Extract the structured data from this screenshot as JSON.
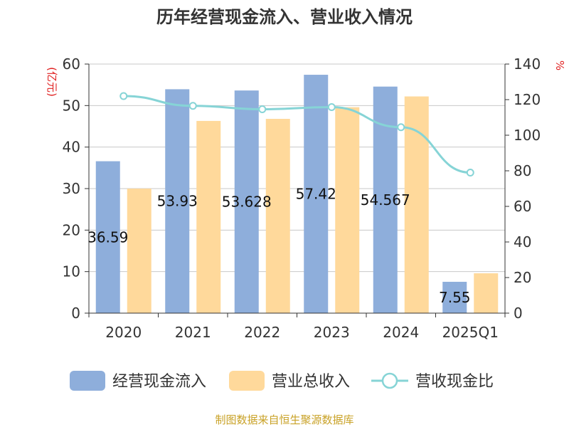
{
  "chart_data": {
    "type": "bar",
    "title": "历年经营现金流入、营业收入情况",
    "categories": [
      "2020",
      "2021",
      "2022",
      "2023",
      "2024",
      "2025Q1"
    ],
    "left_axis": {
      "unit": "(亿元)",
      "min": 0,
      "max": 60,
      "ticks": [
        0,
        10,
        20,
        30,
        40,
        50,
        60
      ]
    },
    "right_axis": {
      "unit": "%",
      "min": 0,
      "max": 140,
      "ticks": [
        0,
        20,
        40,
        60,
        80,
        100,
        120,
        140
      ]
    },
    "series": [
      {
        "name": "经营现金流入",
        "kind": "bar",
        "axis": "left",
        "color": "#8eaedb",
        "values": [
          36.59,
          53.93,
          53.63,
          57.42,
          54.57,
          7.55
        ],
        "labels": [
          "36.59",
          "53.93",
          "53.628",
          "57.42",
          "54.567",
          "7.55"
        ]
      },
      {
        "name": "营业总收入",
        "kind": "bar",
        "axis": "left",
        "color": "#ffd99b",
        "values": [
          30.0,
          46.3,
          46.8,
          49.6,
          52.2,
          9.6
        ]
      },
      {
        "name": "营收现金比",
        "kind": "line",
        "axis": "right",
        "color": "#86d4d6",
        "values": [
          122,
          116.5,
          114.6,
          115.8,
          104.5,
          79
        ]
      }
    ],
    "grid": true,
    "legend_position": "bottom"
  },
  "footer": {
    "source": "制图数据来自恒生聚源数据库"
  }
}
